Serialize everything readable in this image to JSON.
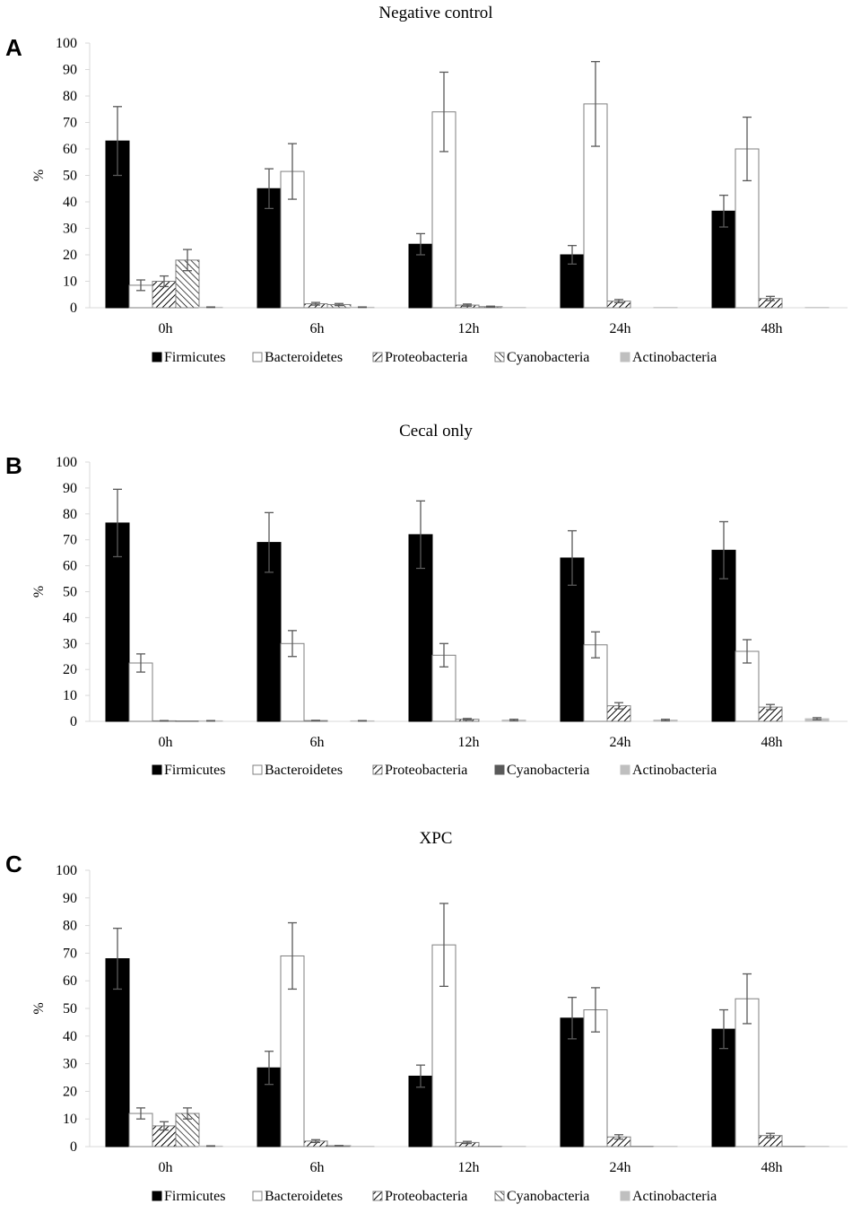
{
  "chart_data": [
    {
      "panel": "A",
      "type": "bar",
      "title": "Negative control",
      "xlabel": "",
      "ylabel": "%",
      "ylim": [
        0,
        100
      ],
      "yticks": [
        "0",
        "10",
        "20",
        "30",
        "40",
        "50",
        "60",
        "70",
        "80",
        "90",
        "100"
      ],
      "categories": [
        "0h",
        "6h",
        "12h",
        "24h",
        "48h"
      ],
      "series": [
        {
          "name": "Firmicutes",
          "style": "solid-black",
          "values": [
            63,
            45,
            24,
            20,
            36.5
          ],
          "errors": [
            13,
            7.5,
            4,
            3.5,
            6
          ]
        },
        {
          "name": "Bacteroidetes",
          "style": "white",
          "values": [
            8.5,
            51.5,
            74,
            77,
            60
          ],
          "errors": [
            2,
            10.5,
            15,
            16,
            12
          ]
        },
        {
          "name": "Proteobacteria",
          "style": "hatch-forward",
          "values": [
            10,
            1.5,
            1,
            2.5,
            3.5
          ],
          "errors": [
            2,
            0.5,
            0.4,
            0.6,
            0.8
          ]
        },
        {
          "name": "Cyanobacteria",
          "style": "hatch-back",
          "values": [
            18,
            1.2,
            0.4,
            0,
            0
          ],
          "errors": [
            4,
            0.4,
            0.2,
            0,
            0
          ]
        },
        {
          "name": "Actinobacteria",
          "style": "light-gray",
          "values": [
            0.2,
            0.2,
            0.1,
            0.1,
            0.1
          ],
          "errors": [
            0.1,
            0.1,
            0,
            0,
            0
          ]
        }
      ],
      "legend": [
        "Firmicutes",
        "Bacteroidetes",
        "Proteobacteria",
        "Cyanobacteria",
        "Actinobacteria"
      ]
    },
    {
      "panel": "B",
      "type": "bar",
      "title": "Cecal only",
      "xlabel": "",
      "ylabel": "%",
      "ylim": [
        0,
        100
      ],
      "yticks": [
        "0",
        "10",
        "20",
        "30",
        "40",
        "50",
        "60",
        "70",
        "80",
        "90",
        "100"
      ],
      "categories": [
        "0h",
        "6h",
        "12h",
        "24h",
        "48h"
      ],
      "series": [
        {
          "name": "Firmicutes",
          "style": "solid-black",
          "values": [
            76.5,
            69,
            72,
            63,
            66
          ],
          "errors": [
            13,
            11.5,
            13,
            10.5,
            11
          ]
        },
        {
          "name": "Bacteroidetes",
          "style": "white",
          "values": [
            22.5,
            30,
            25.5,
            29.5,
            27
          ],
          "errors": [
            3.5,
            5,
            4.5,
            5,
            4.5
          ]
        },
        {
          "name": "Proteobacteria",
          "style": "hatch-forward",
          "values": [
            0.2,
            0.3,
            0.8,
            6,
            5.5
          ],
          "errors": [
            0.1,
            0.1,
            0.3,
            1.2,
            1
          ]
        },
        {
          "name": "Cyanobacteria",
          "style": "dark-gray",
          "values": [
            0.1,
            0,
            0,
            0,
            0
          ],
          "errors": [
            0,
            0,
            0,
            0,
            0
          ]
        },
        {
          "name": "Actinobacteria",
          "style": "light-gray",
          "values": [
            0.2,
            0.2,
            0.5,
            0.5,
            1
          ],
          "errors": [
            0.1,
            0.1,
            0.3,
            0.3,
            0.4
          ]
        }
      ],
      "legend": [
        "Firmicutes",
        "Bacteroidetes",
        "Proteobacteria",
        "Cyanobacteria",
        "Actinobacteria"
      ]
    },
    {
      "panel": "C",
      "type": "bar",
      "title": "XPC",
      "xlabel": "",
      "ylabel": "%",
      "ylim": [
        0,
        100
      ],
      "yticks": [
        "0",
        "10",
        "20",
        "30",
        "40",
        "50",
        "60",
        "70",
        "80",
        "90",
        "100"
      ],
      "categories": [
        "0h",
        "6h",
        "12h",
        "24h",
        "48h"
      ],
      "series": [
        {
          "name": "Firmicutes",
          "style": "solid-black",
          "values": [
            68,
            28.5,
            25.5,
            46.5,
            42.5
          ],
          "errors": [
            11,
            6,
            4,
            7.5,
            7
          ]
        },
        {
          "name": "Bacteroidetes",
          "style": "white",
          "values": [
            12,
            69,
            73,
            49.5,
            53.5
          ],
          "errors": [
            2,
            12,
            15,
            8,
            9
          ]
        },
        {
          "name": "Proteobacteria",
          "style": "hatch-forward",
          "values": [
            7.5,
            2,
            1.5,
            3.5,
            4
          ],
          "errors": [
            1.5,
            0.5,
            0.4,
            0.8,
            0.8
          ]
        },
        {
          "name": "Cyanobacteria",
          "style": "hatch-back",
          "values": [
            12,
            0.3,
            0.1,
            0.1,
            0.1
          ],
          "errors": [
            2,
            0.1,
            0,
            0,
            0
          ]
        },
        {
          "name": "Actinobacteria",
          "style": "light-gray",
          "values": [
            0.2,
            0.1,
            0.1,
            0.1,
            0.1
          ],
          "errors": [
            0.1,
            0,
            0,
            0,
            0
          ]
        }
      ],
      "legend": [
        "Firmicutes",
        "Bacteroidetes",
        "Proteobacteria",
        "Cyanobacteria",
        "Actinobacteria"
      ]
    }
  ],
  "colors": {
    "black": "#000000",
    "white": "#ffffff",
    "axis": "#d9d9d9",
    "error": "#595959",
    "dark_gray": "#595959",
    "light_gray": "#bfbfbf"
  }
}
